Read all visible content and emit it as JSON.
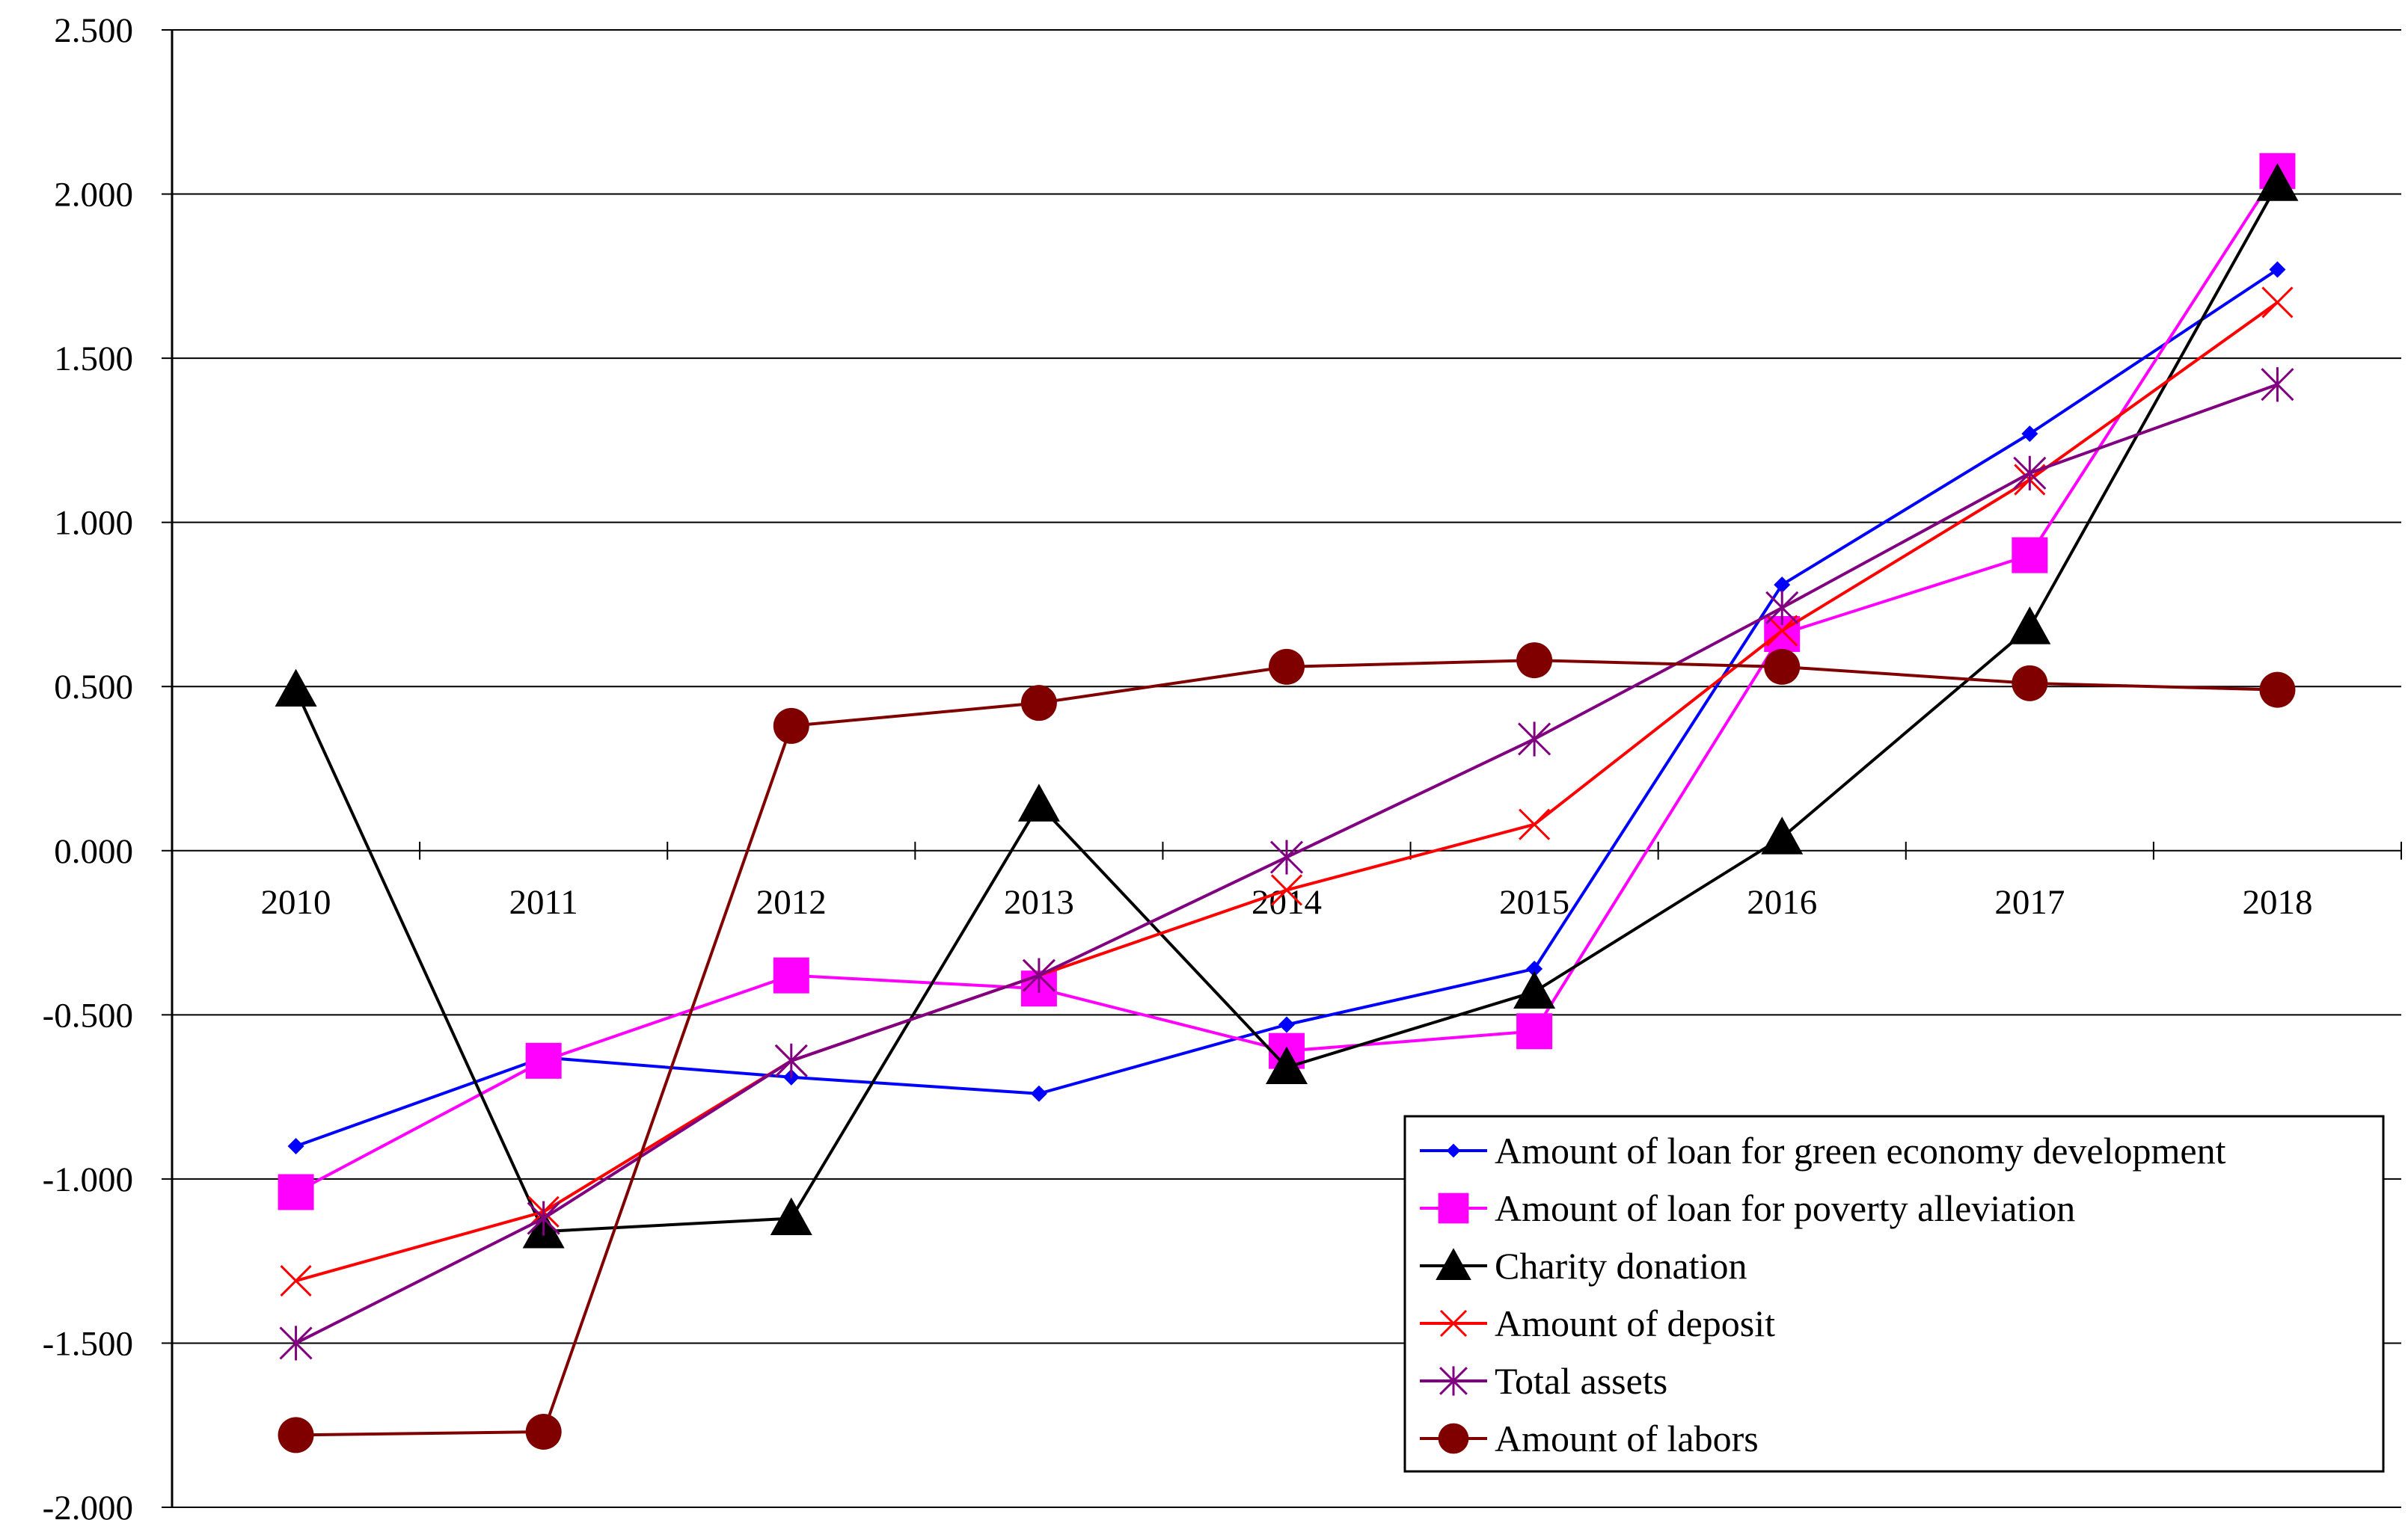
{
  "chart_data": {
    "type": "line",
    "title": "",
    "xlabel": "",
    "ylabel": "",
    "ylim": [
      -2.0,
      2.5
    ],
    "y_ticks": [
      {
        "value": 2.5,
        "label": "2.500"
      },
      {
        "value": 2.0,
        "label": "2.000"
      },
      {
        "value": 1.5,
        "label": "1.500"
      },
      {
        "value": 1.0,
        "label": "1.000"
      },
      {
        "value": 0.5,
        "label": "0.500"
      },
      {
        "value": 0.0,
        "label": "0.000"
      },
      {
        "value": -0.5,
        "label": "-0.500"
      },
      {
        "value": -1.0,
        "label": "-1.000"
      },
      {
        "value": -1.5,
        "label": "-1.500"
      },
      {
        "value": -2.0,
        "label": "-2.000"
      }
    ],
    "grid": true,
    "legend_position": "bottom-right",
    "categories": [
      "2010",
      "2011",
      "2012",
      "2013",
      "2014",
      "2015",
      "2016",
      "2017",
      "2018"
    ],
    "series": [
      {
        "name": "Amount of loan for green economy development",
        "color": "#0000FF",
        "marker": "diamond",
        "values": [
          -0.9,
          -0.63,
          -0.69,
          -0.74,
          -0.53,
          -0.36,
          0.81,
          1.27,
          1.77
        ]
      },
      {
        "name": "Amount of loan for poverty alleviation",
        "color": "#FF00FF",
        "marker": "square",
        "values": [
          -1.04,
          -0.64,
          -0.38,
          -0.42,
          -0.61,
          -0.55,
          0.66,
          0.9,
          2.07
        ]
      },
      {
        "name": "Charity donation",
        "color": "#000000",
        "marker": "triangle",
        "values": [
          0.49,
          -1.16,
          -1.12,
          0.14,
          -0.66,
          -0.43,
          0.04,
          0.68,
          2.03
        ]
      },
      {
        "name": "Amount of deposit",
        "color": "#FF0000",
        "marker": "x",
        "values": [
          -1.31,
          -1.1,
          -0.64,
          -0.38,
          -0.12,
          0.08,
          0.67,
          1.13,
          1.67
        ]
      },
      {
        "name": "Total assets",
        "color": "#800080",
        "marker": "star",
        "values": [
          -1.5,
          -1.12,
          -0.64,
          -0.38,
          -0.02,
          0.34,
          0.74,
          1.15,
          1.42
        ]
      },
      {
        "name": "Amount of labors",
        "color": "#800000",
        "marker": "circle",
        "values": [
          -1.78,
          -1.77,
          0.38,
          0.45,
          0.56,
          0.58,
          0.56,
          0.51,
          0.49
        ]
      }
    ]
  }
}
